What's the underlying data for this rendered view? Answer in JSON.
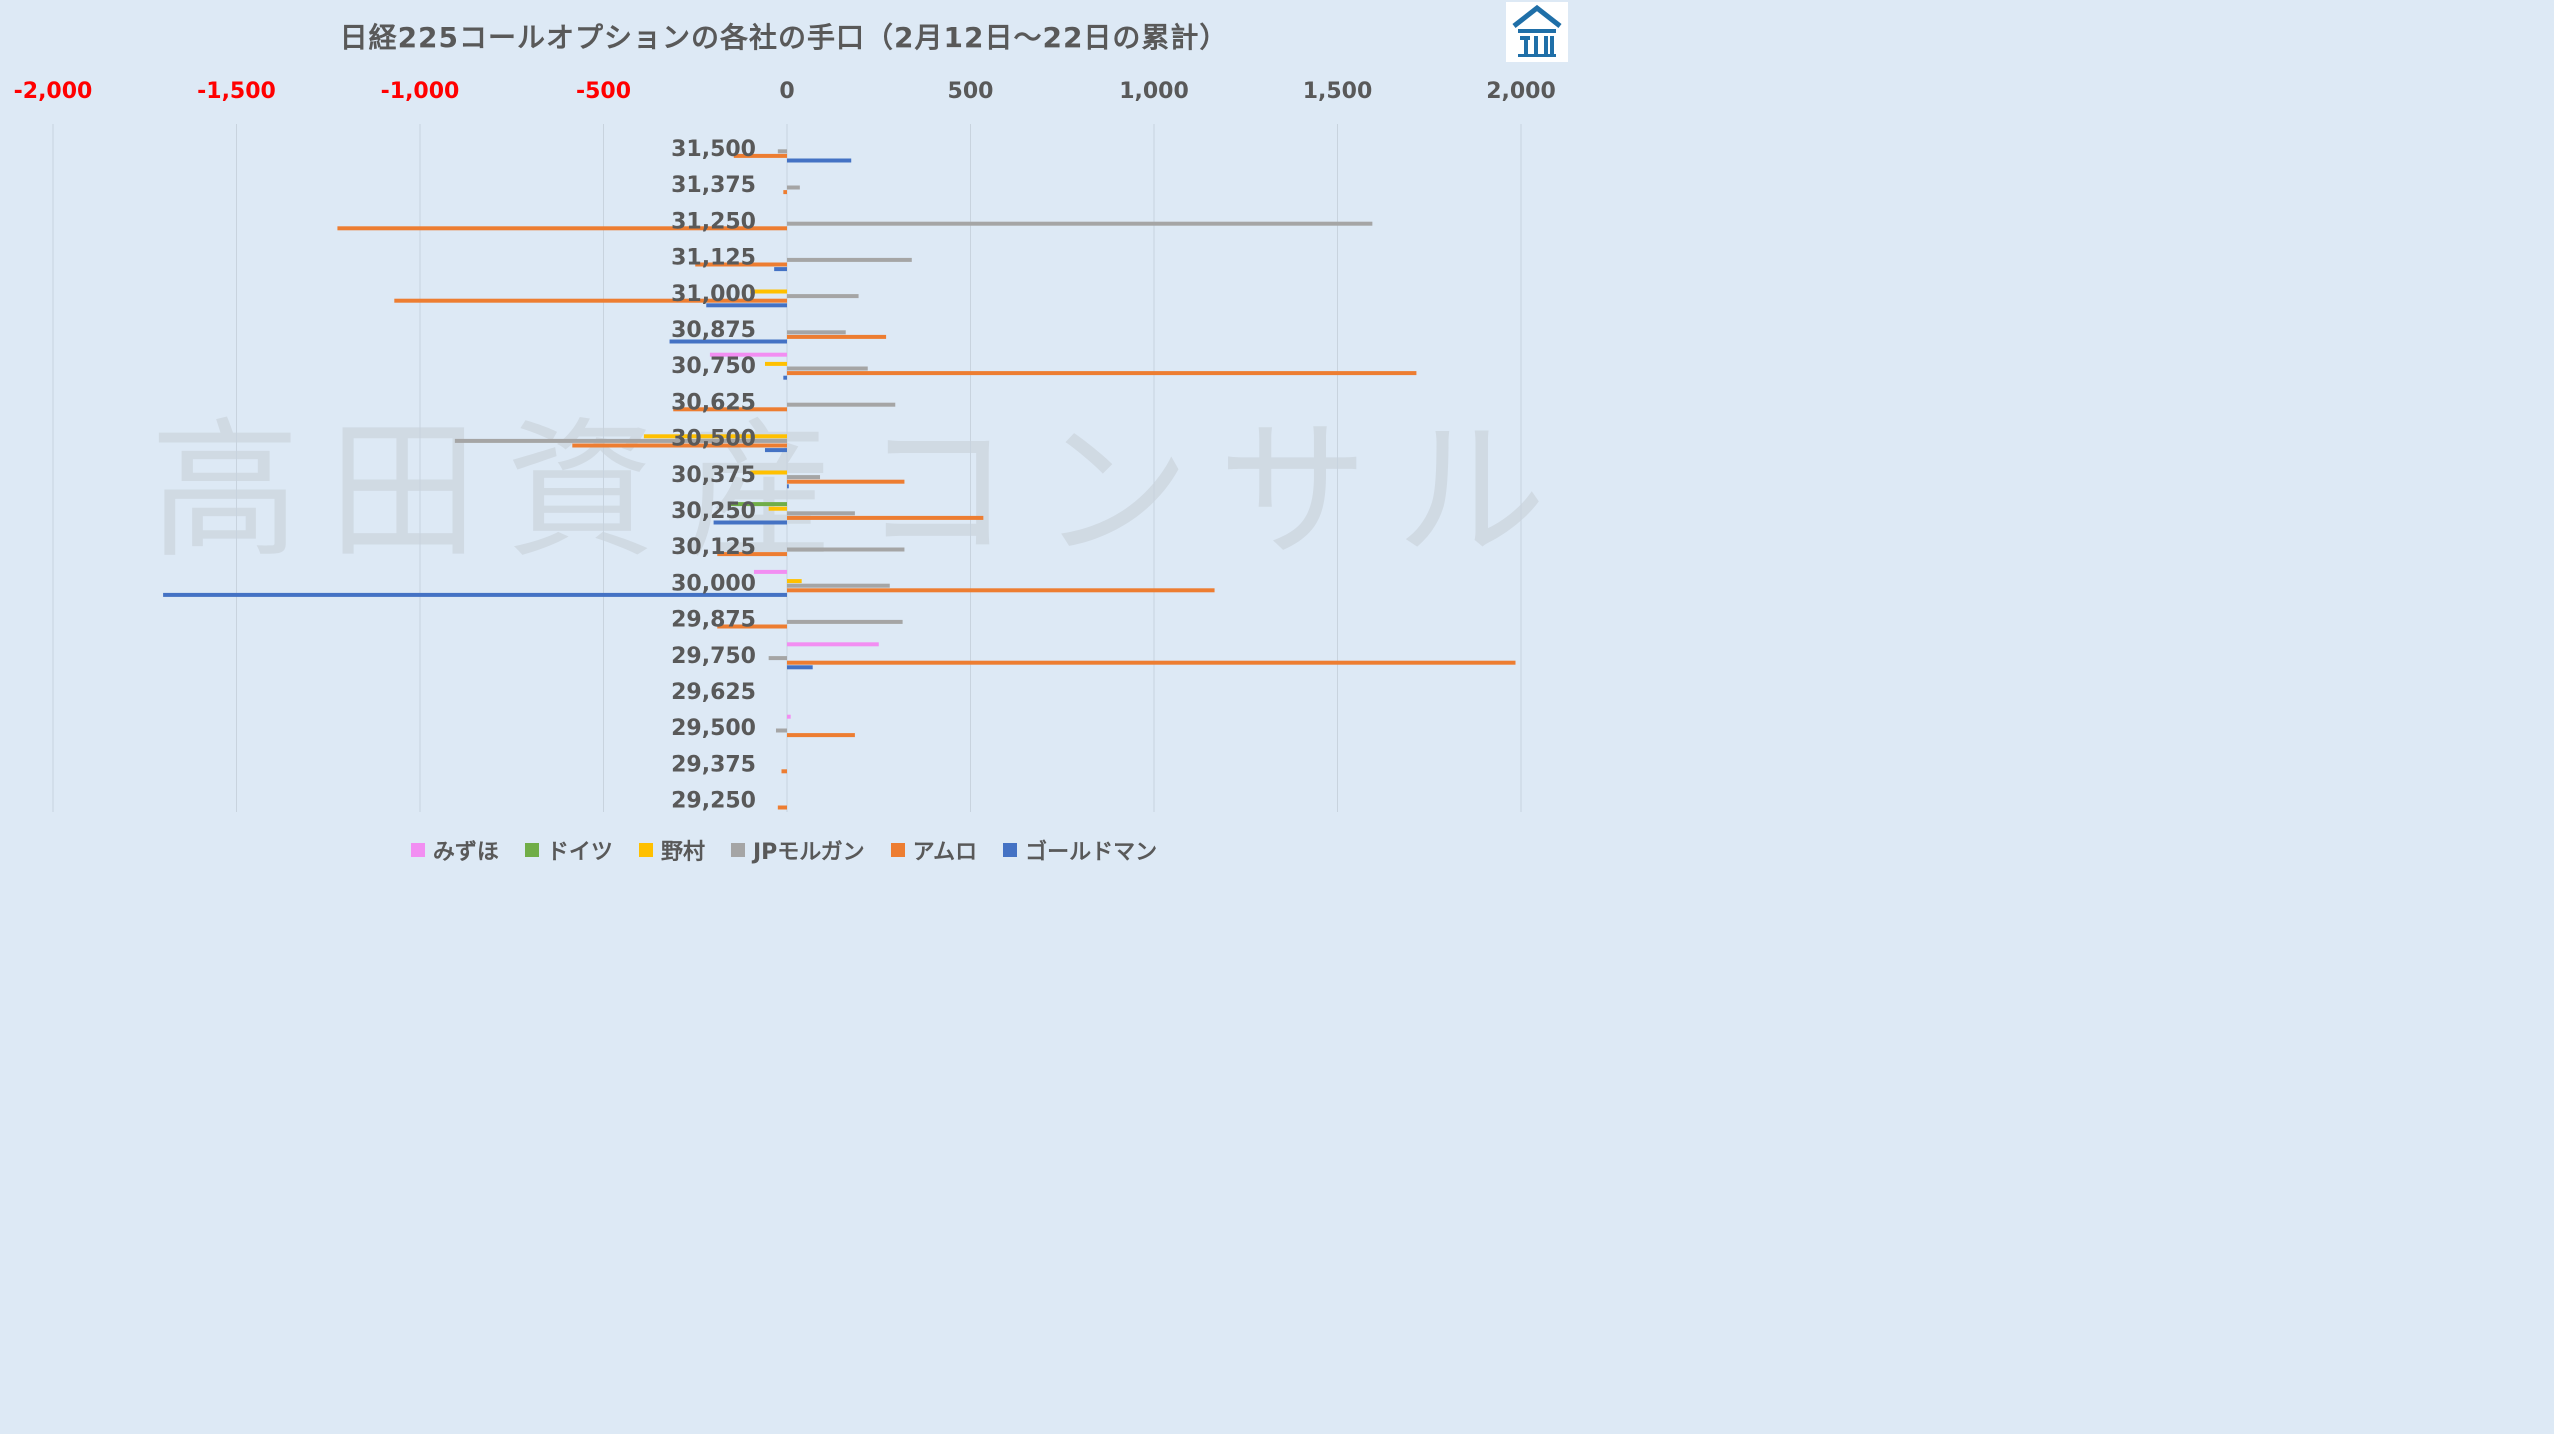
{
  "title": "日経225コールオプションの各社の手口（2月12日〜22日の累計）",
  "watermark": "高田資産コンサル",
  "chart_data": {
    "type": "bar",
    "orientation": "horizontal",
    "title": "日経225コールオプションの各社の手口（2月12日〜22日の累計）",
    "xlim": [
      -2000,
      2000
    ],
    "x_ticks": [
      -2000,
      -1500,
      -1000,
      -500,
      0,
      500,
      1000,
      1500,
      2000
    ],
    "x_tick_labels": [
      "-2,000",
      "-1,500",
      "-1,000",
      "-500",
      "0",
      "500",
      "1,000",
      "1,500",
      "2,000"
    ],
    "negative_tick_color": "#ff0000",
    "positive_tick_color": "#595959",
    "grid": "vertical",
    "legend_position": "bottom",
    "categories": [
      "31,500",
      "31,375",
      "31,250",
      "31,125",
      "31,000",
      "30,875",
      "30,750",
      "30,625",
      "30,500",
      "30,375",
      "30,250",
      "30,125",
      "30,000",
      "29,875",
      "29,750",
      "29,625",
      "29,500",
      "29,375",
      "29,250"
    ],
    "series": [
      {
        "name": "みずほ",
        "color": "#f28ef2",
        "values": [
          0,
          0,
          0,
          0,
          0,
          0,
          -210,
          0,
          0,
          0,
          0,
          0,
          -90,
          0,
          250,
          0,
          10,
          0,
          0
        ]
      },
      {
        "name": "ドイツ",
        "color": "#70ad47",
        "values": [
          0,
          0,
          0,
          0,
          0,
          0,
          0,
          0,
          0,
          0,
          -155,
          0,
          0,
          0,
          0,
          0,
          0,
          0,
          0
        ]
      },
      {
        "name": "野村",
        "color": "#ffc000",
        "values": [
          0,
          0,
          0,
          0,
          -100,
          0,
          -60,
          0,
          -390,
          -100,
          -50,
          0,
          40,
          0,
          0,
          0,
          0,
          0,
          0
        ]
      },
      {
        "name": "JPモルガン",
        "color": "#a5a5a5",
        "values": [
          -25,
          35,
          1595,
          340,
          195,
          160,
          220,
          295,
          -905,
          90,
          185,
          320,
          280,
          315,
          -50,
          0,
          -30,
          0,
          0
        ]
      },
      {
        "name": "アムロ",
        "color": "#ed7d31",
        "values": [
          -145,
          -10,
          -1225,
          -250,
          -1070,
          270,
          1715,
          -310,
          -585,
          320,
          535,
          -190,
          1165,
          -190,
          1985,
          0,
          185,
          -15,
          -25
        ]
      },
      {
        "name": "ゴールドマン",
        "color": "#4472c4",
        "values": [
          175,
          0,
          0,
          -35,
          -220,
          -320,
          -10,
          0,
          -60,
          5,
          -200,
          0,
          -1700,
          0,
          70,
          0,
          0,
          0,
          0
        ]
      }
    ]
  },
  "legend": [
    {
      "label": "みずほ",
      "color": "#f28ef2"
    },
    {
      "label": "ドイツ",
      "color": "#70ad47"
    },
    {
      "label": "野村",
      "color": "#ffc000"
    },
    {
      "label": "JPモルガン",
      "color": "#a5a5a5"
    },
    {
      "label": "アムロ",
      "color": "#ed7d31"
    },
    {
      "label": "ゴールドマン",
      "color": "#4472c4"
    }
  ]
}
